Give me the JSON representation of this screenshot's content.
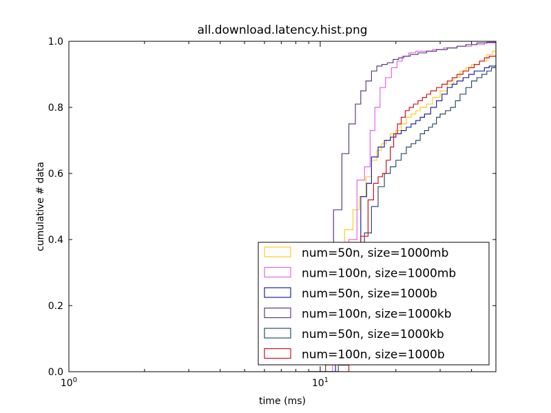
{
  "chart_data": {
    "type": "line",
    "title": "all.download.latency.hist.png",
    "xlabel": "time (ms)",
    "ylabel": "cumulative # data",
    "xscale": "log",
    "xlim": [
      1,
      50
    ],
    "ylim": [
      0,
      1
    ],
    "grid": false,
    "legend_position": "lower-right",
    "x_ticks": [
      {
        "value": 1,
        "base": "10",
        "exp": "0"
      },
      {
        "value": 10,
        "base": "10",
        "exp": "1"
      }
    ],
    "y_ticks": [
      "0.0",
      "0.2",
      "0.4",
      "0.6",
      "0.8",
      "1.0"
    ],
    "series": [
      {
        "name": "num=50n, size=1000mb",
        "color": "#ffcc22",
        "x": [
          8.0,
          10.5,
          11.6,
          12.5,
          13.5,
          14.3,
          15.2,
          16.0,
          16.8,
          17.5,
          18.3,
          19.0,
          20.0,
          21.0,
          22.0,
          23.0,
          24.0,
          25.0,
          26.5,
          28.0,
          30.0,
          32.0,
          34.0,
          36.0,
          38.0,
          40.0,
          43.0,
          46.0,
          48.5,
          50.0
        ],
        "y": [
          0.0,
          0.02,
          0.3,
          0.43,
          0.49,
          0.53,
          0.59,
          0.64,
          0.67,
          0.69,
          0.7,
          0.72,
          0.73,
          0.75,
          0.77,
          0.78,
          0.79,
          0.8,
          0.81,
          0.83,
          0.85,
          0.87,
          0.89,
          0.91,
          0.92,
          0.93,
          0.94,
          0.96,
          0.97,
          0.97
        ]
      },
      {
        "name": "num=100n, size=1000mb",
        "color": "#e464e8",
        "x": [
          10.5,
          11.2,
          12.0,
          13.0,
          14.0,
          15.0,
          15.8,
          16.5,
          17.3,
          18.2,
          19.2,
          20.2,
          21.2,
          22.5,
          24.0,
          26.0,
          28.0,
          31.0,
          35.0,
          40.0,
          45.0,
          50.0
        ],
        "y": [
          0.0,
          0.05,
          0.2,
          0.4,
          0.58,
          0.62,
          0.73,
          0.8,
          0.86,
          0.89,
          0.92,
          0.94,
          0.955,
          0.965,
          0.97,
          0.97,
          0.975,
          0.98,
          0.985,
          0.99,
          0.995,
          0.998
        ]
      },
      {
        "name": "num=50n, size=1000b",
        "color": "#1f20a8",
        "x": [
          9.0,
          11.5,
          12.5,
          13.5,
          14.5,
          15.3,
          16.0,
          17.0,
          18.0,
          19.0,
          20.0,
          21.0,
          22.0,
          23.0,
          24.0,
          25.0,
          26.0,
          27.5,
          29.0,
          30.5,
          32.0,
          33.5,
          35.0,
          37.0,
          39.0,
          41.0,
          43.0,
          45.0,
          47.0,
          50.0
        ],
        "y": [
          0.0,
          0.03,
          0.2,
          0.39,
          0.53,
          0.57,
          0.65,
          0.68,
          0.7,
          0.71,
          0.72,
          0.73,
          0.74,
          0.75,
          0.76,
          0.77,
          0.78,
          0.8,
          0.82,
          0.84,
          0.86,
          0.87,
          0.88,
          0.89,
          0.9,
          0.91,
          0.91,
          0.92,
          0.925,
          0.93
        ]
      },
      {
        "name": "num=100n, size=1000kb",
        "color": "#5a3d7c",
        "x": [
          9.5,
          10.5,
          11.3,
          12.2,
          13.0,
          13.8,
          14.5,
          15.2,
          16.0,
          16.8,
          17.6,
          18.5,
          19.5,
          20.5,
          21.5,
          22.8,
          24.5,
          26.5,
          29.0,
          32.0,
          35.0,
          38.0,
          42.0,
          46.0,
          50.0
        ],
        "y": [
          0.0,
          0.25,
          0.49,
          0.66,
          0.75,
          0.81,
          0.85,
          0.88,
          0.91,
          0.925,
          0.93,
          0.935,
          0.945,
          0.95,
          0.955,
          0.96,
          0.965,
          0.97,
          0.975,
          0.98,
          0.985,
          0.99,
          0.995,
          0.997,
          0.998
        ]
      },
      {
        "name": "num=50n, size=1000kb",
        "color": "#2a4f5f",
        "x": [
          9.0,
          11.8,
          13.0,
          14.0,
          15.0,
          16.0,
          17.0,
          18.0,
          19.0,
          20.0,
          21.0,
          22.0,
          23.0,
          24.0,
          25.0,
          26.0,
          27.0,
          28.0,
          29.0,
          30.0,
          31.5,
          33.0,
          34.5,
          36.0,
          38.0,
          40.0,
          42.0,
          44.0,
          46.0,
          48.0,
          50.0
        ],
        "y": [
          0.0,
          0.02,
          0.18,
          0.33,
          0.42,
          0.5,
          0.56,
          0.6,
          0.62,
          0.64,
          0.66,
          0.68,
          0.69,
          0.7,
          0.72,
          0.73,
          0.74,
          0.75,
          0.77,
          0.78,
          0.79,
          0.8,
          0.82,
          0.84,
          0.86,
          0.88,
          0.89,
          0.9,
          0.91,
          0.92,
          0.925
        ]
      },
      {
        "name": "num=100n, size=1000b",
        "color": "#d0101a",
        "x": [
          9.0,
          13.0,
          14.5,
          15.5,
          16.3,
          17.0,
          17.7,
          18.3,
          19.0,
          19.6,
          20.3,
          21.0,
          21.8,
          22.6,
          23.5,
          24.5,
          25.5,
          26.5,
          27.5,
          29.0,
          30.5,
          32.0,
          33.5,
          35.0,
          37.0,
          39.0,
          41.0,
          43.0,
          45.0,
          47.0,
          50.0
        ],
        "y": [
          0.0,
          0.03,
          0.41,
          0.52,
          0.57,
          0.59,
          0.6,
          0.64,
          0.68,
          0.72,
          0.75,
          0.77,
          0.79,
          0.8,
          0.81,
          0.82,
          0.83,
          0.84,
          0.85,
          0.86,
          0.87,
          0.88,
          0.89,
          0.9,
          0.91,
          0.92,
          0.93,
          0.94,
          0.95,
          0.955,
          0.96
        ]
      }
    ]
  }
}
